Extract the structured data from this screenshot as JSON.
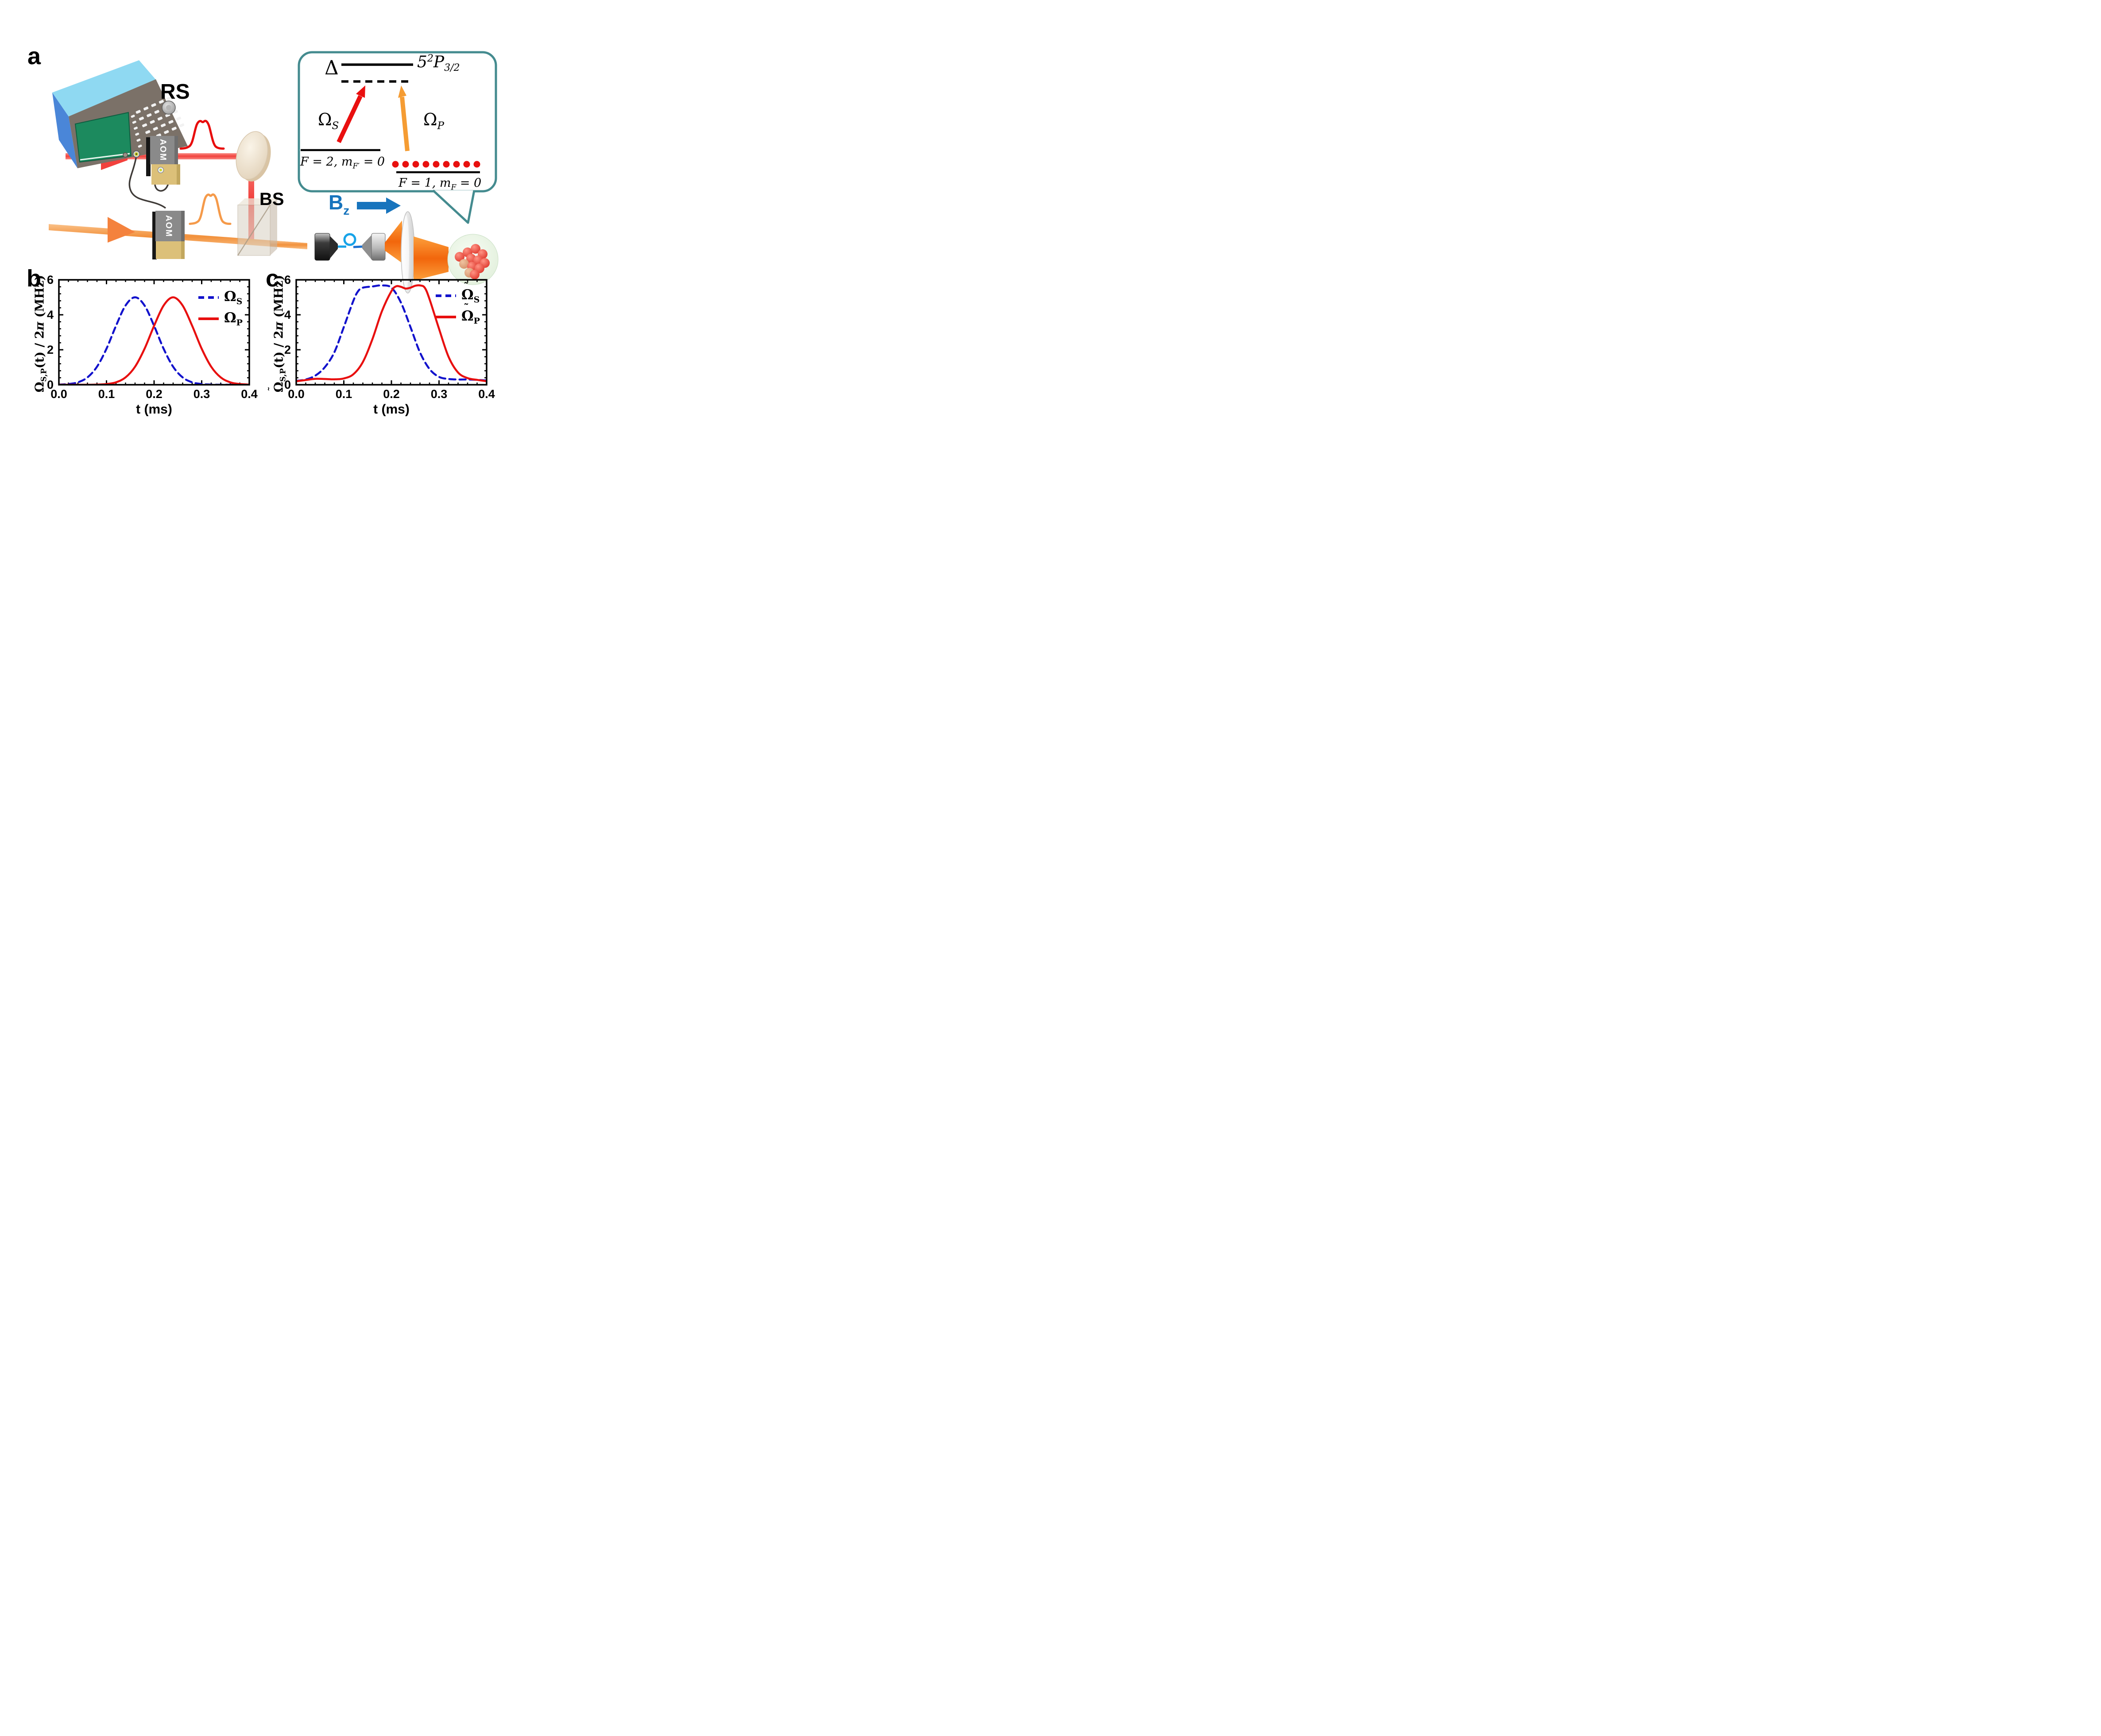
{
  "figure": {
    "panel_a_label": "a",
    "panel_b_label": "b",
    "panel_c_label": "c",
    "rs_label": "RS",
    "aom_label": "AOM",
    "bs_label": "BS",
    "bz": {
      "base": "B",
      "sub": "z"
    },
    "inset": {
      "delta": "Δ",
      "excited": {
        "base": "5",
        "sup": "2",
        "letter": "P",
        "sub": "3/2"
      },
      "omega_s": {
        "base": "Ω",
        "sub": "S"
      },
      "omega_p": {
        "base": "Ω",
        "sub": "P"
      },
      "ground_left": {
        "pre": "F = 2, m",
        "sub": "F′",
        "post": " = 0"
      },
      "ground_right": {
        "pre": "F = 1, m",
        "sub": "F",
        "post": " = 0"
      },
      "dot_count": 9
    },
    "colors": {
      "curve_blue": "#1212cc",
      "curve_red": "#e80f0f",
      "pulse_red": "#e80c0c",
      "pulse_orange": "#f59a4a",
      "beam_red": "#f04a46",
      "beam_orange": "#f5a058",
      "cone_orange": "#f87c1b",
      "bz_blue": "#1774bd",
      "bubble_border": "#448b8f",
      "level_dots_red": "#e8100e",
      "inset_arrow_red": "#e90f0f",
      "inset_arrow_orange": "#f59c33"
    }
  },
  "chart_data": [
    {
      "id": "b",
      "type": "line",
      "title": "",
      "xlabel": "t (ms)",
      "ylabel": "Ω_S,P(t) / 2π (MHz)",
      "ylabel_parts": {
        "tilde": "",
        "base": "Ω",
        "sub": "S,P",
        "mid": "(t) / 2",
        "pi": "π",
        "unit": " (MHz)"
      },
      "xlim": [
        0,
        0.4
      ],
      "ylim": [
        0,
        6
      ],
      "xticks": [
        "0.0",
        "0.1",
        "0.2",
        "0.3",
        "0.4"
      ],
      "yticks": [
        "0",
        "2",
        "4",
        "6"
      ],
      "x_minor_per_major": 5,
      "y_minor_per_major": 5,
      "grid": false,
      "legend_position": "top-right",
      "series": [
        {
          "name": "Omega_S",
          "legend": {
            "tilde": "",
            "base": "Ω",
            "sub": "S"
          },
          "color": "#1212cc",
          "dash": true,
          "points": [
            [
              0,
              0.01
            ],
            [
              0.02,
              0.04
            ],
            [
              0.04,
              0.14
            ],
            [
              0.06,
              0.42
            ],
            [
              0.08,
              1.03
            ],
            [
              0.1,
              2.06
            ],
            [
              0.12,
              3.37
            ],
            [
              0.14,
              4.53
            ],
            [
              0.16,
              5.0
            ],
            [
              0.18,
              4.53
            ],
            [
              0.2,
              3.37
            ],
            [
              0.22,
              2.06
            ],
            [
              0.24,
              1.03
            ],
            [
              0.26,
              0.42
            ],
            [
              0.28,
              0.14
            ],
            [
              0.3,
              0.04
            ],
            [
              0.32,
              0.01
            ],
            [
              0.34,
              0.0
            ],
            [
              0.36,
              0.0
            ],
            [
              0.38,
              0.0
            ],
            [
              0.4,
              0.0
            ]
          ]
        },
        {
          "name": "Omega_P",
          "legend": {
            "tilde": "",
            "base": "Ω",
            "sub": "P"
          },
          "color": "#e80f0f",
          "dash": false,
          "points": [
            [
              0,
              0.0
            ],
            [
              0.02,
              0.0
            ],
            [
              0.04,
              0.0
            ],
            [
              0.06,
              0.0
            ],
            [
              0.08,
              0.01
            ],
            [
              0.1,
              0.04
            ],
            [
              0.12,
              0.14
            ],
            [
              0.14,
              0.42
            ],
            [
              0.16,
              1.03
            ],
            [
              0.18,
              2.06
            ],
            [
              0.2,
              3.37
            ],
            [
              0.22,
              4.53
            ],
            [
              0.24,
              5.0
            ],
            [
              0.26,
              4.53
            ],
            [
              0.28,
              3.37
            ],
            [
              0.3,
              2.06
            ],
            [
              0.32,
              1.03
            ],
            [
              0.34,
              0.42
            ],
            [
              0.36,
              0.14
            ],
            [
              0.38,
              0.04
            ],
            [
              0.4,
              0.01
            ]
          ]
        }
      ]
    },
    {
      "id": "c",
      "type": "line",
      "title": "",
      "xlabel": "t (ms)",
      "ylabel": "Ω̃_S,P(t) / 2π (MHz)",
      "ylabel_parts": {
        "tilde": "˜",
        "base": "Ω",
        "sub": "S,P",
        "mid": "(t) / 2",
        "pi": "π",
        "unit": " (MHz)"
      },
      "xlim": [
        0,
        0.4
      ],
      "ylim": [
        0,
        6
      ],
      "xticks": [
        "0.0",
        "0.1",
        "0.2",
        "0.3",
        "0.4"
      ],
      "yticks": [
        "0",
        "2",
        "4",
        "6"
      ],
      "x_minor_per_major": 5,
      "y_minor_per_major": 5,
      "grid": false,
      "legend_position": "top-right",
      "series": [
        {
          "name": "Omega_S_tilde",
          "legend": {
            "tilde": "˜",
            "base": "Ω",
            "sub": "S"
          },
          "color": "#1212cc",
          "dash": true,
          "points": [
            [
              0,
              0.22
            ],
            [
              0.02,
              0.3
            ],
            [
              0.04,
              0.52
            ],
            [
              0.06,
              1.0
            ],
            [
              0.08,
              1.85
            ],
            [
              0.1,
              3.3
            ],
            [
              0.12,
              4.8
            ],
            [
              0.13,
              5.35
            ],
            [
              0.14,
              5.55
            ],
            [
              0.16,
              5.62
            ],
            [
              0.18,
              5.68
            ],
            [
              0.2,
              5.55
            ],
            [
              0.22,
              4.7
            ],
            [
              0.24,
              3.3
            ],
            [
              0.26,
              1.85
            ],
            [
              0.28,
              0.9
            ],
            [
              0.3,
              0.45
            ],
            [
              0.32,
              0.33
            ],
            [
              0.34,
              0.3
            ],
            [
              0.36,
              0.3
            ],
            [
              0.38,
              0.28
            ],
            [
              0.4,
              0.24
            ]
          ]
        },
        {
          "name": "Omega_P_tilde",
          "legend": {
            "tilde": "˜",
            "base": "Ω",
            "sub": "P"
          },
          "color": "#e80f0f",
          "dash": false,
          "points": [
            [
              0,
              0.2
            ],
            [
              0.02,
              0.27
            ],
            [
              0.04,
              0.34
            ],
            [
              0.06,
              0.33
            ],
            [
              0.08,
              0.31
            ],
            [
              0.1,
              0.36
            ],
            [
              0.12,
              0.6
            ],
            [
              0.14,
              1.3
            ],
            [
              0.16,
              2.6
            ],
            [
              0.18,
              4.2
            ],
            [
              0.2,
              5.35
            ],
            [
              0.21,
              5.63
            ],
            [
              0.22,
              5.6
            ],
            [
              0.23,
              5.5
            ],
            [
              0.24,
              5.55
            ],
            [
              0.25,
              5.66
            ],
            [
              0.26,
              5.68
            ],
            [
              0.27,
              5.55
            ],
            [
              0.28,
              4.9
            ],
            [
              0.3,
              3.2
            ],
            [
              0.32,
              1.6
            ],
            [
              0.34,
              0.7
            ],
            [
              0.36,
              0.38
            ],
            [
              0.38,
              0.28
            ],
            [
              0.4,
              0.2
            ]
          ]
        }
      ]
    }
  ]
}
